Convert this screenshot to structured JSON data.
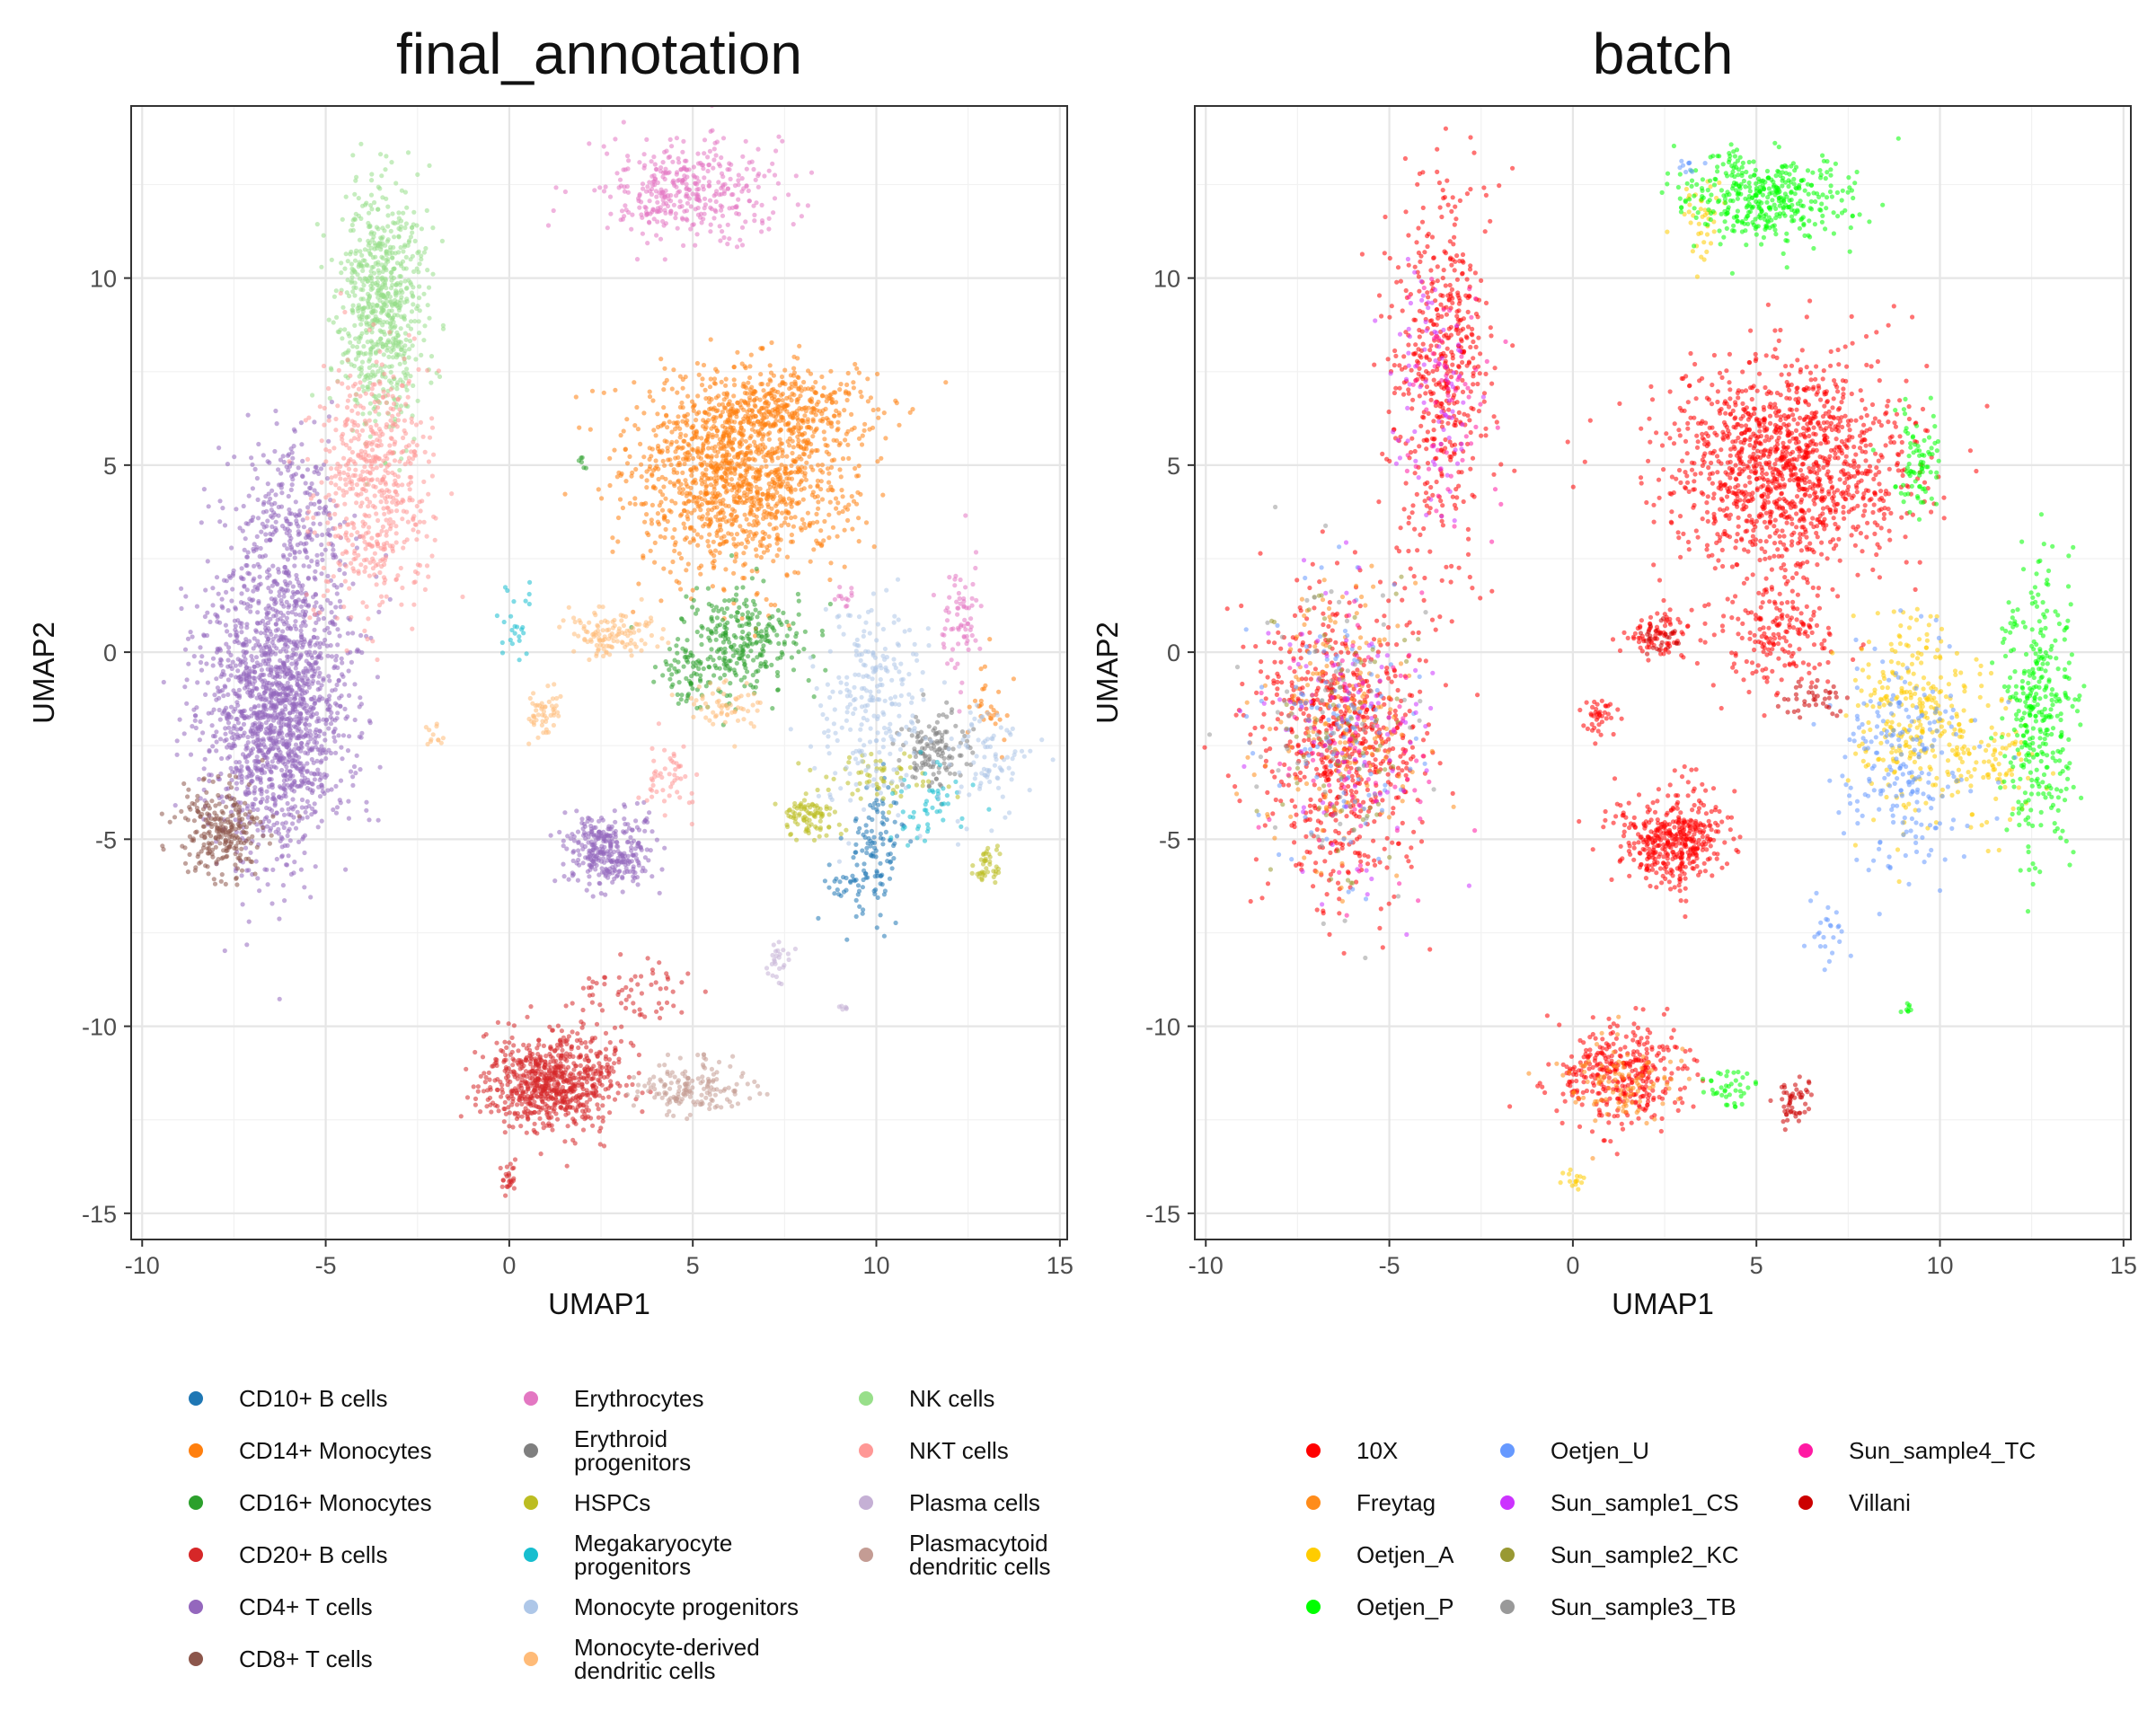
{
  "chart_data": [
    {
      "type": "scatter",
      "title": "final_annotation",
      "xlabel": "UMAP1",
      "ylabel": "UMAP2",
      "xlim": [
        -10.3,
        15.2
      ],
      "ylim": [
        -15.7,
        14.6
      ],
      "x_ticks": [
        -10,
        -5,
        0,
        5,
        10,
        15
      ],
      "y_ticks": [
        -15,
        -10,
        -5,
        0,
        5,
        10
      ],
      "x_tick_labels": [
        "-10",
        "-5",
        "0",
        "5",
        "10",
        "15"
      ],
      "y_tick_labels": [
        "-15",
        "-10",
        "-5",
        "0",
        "5",
        "10"
      ],
      "grid": true,
      "legend_position": "bottom",
      "series": [
        {
          "name": "CD10+ B cells",
          "color": "#1f77b4",
          "clusters": [
            {
              "cx": 10.0,
              "cy": -5.2,
              "sx": 0.4,
              "sy": 0.9,
              "n": 110
            },
            {
              "cx": 9.2,
              "cy": -6.3,
              "sx": 0.3,
              "sy": 0.4,
              "n": 25
            }
          ]
        },
        {
          "name": "CD14+ Monocytes",
          "color": "#ff7f0e",
          "clusters": [
            {
              "cx": 6.3,
              "cy": 4.8,
              "sx": 1.5,
              "sy": 1.3,
              "n": 1300
            },
            {
              "cx": 7.5,
              "cy": 6.5,
              "sx": 1.4,
              "sy": 0.5,
              "n": 300
            },
            {
              "cx": 13.0,
              "cy": -1.2,
              "sx": 0.3,
              "sy": 0.6,
              "n": 30
            }
          ]
        },
        {
          "name": "CD16+ Monocytes",
          "color": "#2ca02c",
          "clusters": [
            {
              "cx": 6.3,
              "cy": 0.3,
              "sx": 0.8,
              "sy": 0.7,
              "n": 280
            },
            {
              "cx": 4.8,
              "cy": -0.6,
              "sx": 0.4,
              "sy": 0.4,
              "n": 60
            },
            {
              "cx": 2.0,
              "cy": 5.1,
              "sx": 0.1,
              "sy": 0.1,
              "n": 6
            }
          ]
        },
        {
          "name": "CD20+ B cells",
          "color": "#d62728",
          "clusters": [
            {
              "cx": 1.2,
              "cy": -11.5,
              "sx": 0.9,
              "sy": 0.65,
              "n": 750
            },
            {
              "cx": 3.3,
              "cy": -9.0,
              "sx": 0.7,
              "sy": 0.4,
              "n": 60
            },
            {
              "cx": 0.0,
              "cy": -14.1,
              "sx": 0.15,
              "sy": 0.2,
              "n": 25
            }
          ]
        },
        {
          "name": "CD4+ T cells",
          "color": "#9467bd",
          "clusters": [
            {
              "cx": -6.3,
              "cy": -1.5,
              "sx": 1.0,
              "sy": 2.0,
              "n": 1700
            },
            {
              "cx": -6.0,
              "cy": 3.5,
              "sx": 0.8,
              "sy": 1.3,
              "n": 250
            },
            {
              "cx": 2.7,
              "cy": -5.3,
              "sx": 0.6,
              "sy": 0.5,
              "n": 320
            }
          ]
        },
        {
          "name": "CD8+ T cells",
          "color": "#8c564b",
          "clusters": [
            {
              "cx": -7.8,
              "cy": -4.8,
              "sx": 0.6,
              "sy": 0.6,
              "n": 250
            }
          ]
        },
        {
          "name": "Erythrocytes",
          "color": "#e377c2",
          "clusters": [
            {
              "cx": 4.8,
              "cy": 12.3,
              "sx": 1.2,
              "sy": 0.7,
              "n": 380
            },
            {
              "cx": 12.3,
              "cy": 1.0,
              "sx": 0.3,
              "sy": 0.8,
              "n": 70
            },
            {
              "cx": 9.0,
              "cy": 1.5,
              "sx": 0.2,
              "sy": 0.2,
              "n": 12
            }
          ]
        },
        {
          "name": "Erythroid progenitors",
          "color": "#7f7f7f",
          "clusters": [
            {
              "cx": 11.6,
              "cy": -2.6,
              "sx": 0.45,
              "sy": 0.5,
              "n": 130
            }
          ]
        },
        {
          "name": "HSPCs",
          "color": "#bcbd22",
          "clusters": [
            {
              "cx": 8.2,
              "cy": -4.4,
              "sx": 0.35,
              "sy": 0.3,
              "n": 90
            },
            {
              "cx": 13.0,
              "cy": -5.7,
              "sx": 0.2,
              "sy": 0.3,
              "n": 40
            },
            {
              "cx": 10.1,
              "cy": -3.4,
              "sx": 0.8,
              "sy": 0.3,
              "n": 60
            }
          ]
        },
        {
          "name": "Megakaryocyte progenitors",
          "color": "#17becf",
          "clusters": [
            {
              "cx": 0.2,
              "cy": 0.8,
              "sx": 0.2,
              "sy": 0.5,
              "n": 25
            },
            {
              "cx": 11.5,
              "cy": -4.0,
              "sx": 0.6,
              "sy": 0.5,
              "n": 50
            }
          ]
        },
        {
          "name": "Monocyte progenitors",
          "color": "#aec7e8",
          "clusters": [
            {
              "cx": 9.8,
              "cy": -1.3,
              "sx": 0.7,
              "sy": 1.3,
              "n": 240
            },
            {
              "cx": 13.0,
              "cy": -3.0,
              "sx": 0.6,
              "sy": 0.8,
              "n": 90
            }
          ]
        },
        {
          "name": "Monocyte-derived dendritic cells",
          "color": "#ffbb78",
          "clusters": [
            {
              "cx": 2.8,
              "cy": 0.5,
              "sx": 0.6,
              "sy": 0.3,
              "n": 120
            },
            {
              "cx": 0.9,
              "cy": -1.7,
              "sx": 0.25,
              "sy": 0.3,
              "n": 50
            },
            {
              "cx": 6.0,
              "cy": -1.5,
              "sx": 0.5,
              "sy": 0.3,
              "n": 60
            },
            {
              "cx": -2.0,
              "cy": -2.2,
              "sx": 0.2,
              "sy": 0.2,
              "n": 12
            }
          ]
        },
        {
          "name": "NK cells",
          "color": "#98df8a",
          "clusters": [
            {
              "cx": -3.5,
              "cy": 9.3,
              "sx": 0.6,
              "sy": 1.6,
              "n": 700
            }
          ]
        },
        {
          "name": "NKT cells",
          "color": "#ff9896",
          "clusters": [
            {
              "cx": -3.6,
              "cy": 4.5,
              "sx": 0.8,
              "sy": 1.8,
              "n": 550
            },
            {
              "cx": 4.3,
              "cy": -3.3,
              "sx": 0.4,
              "sy": 0.5,
              "n": 50
            }
          ]
        },
        {
          "name": "Plasma cells",
          "color": "#c5b0d5",
          "clusters": [
            {
              "cx": 7.3,
              "cy": -8.2,
              "sx": 0.2,
              "sy": 0.4,
              "n": 25
            },
            {
              "cx": 9.0,
              "cy": -9.5,
              "sx": 0.1,
              "sy": 0.1,
              "n": 6
            }
          ]
        },
        {
          "name": "Plasmacytoid dendritic cells",
          "color": "#c49c94",
          "clusters": [
            {
              "cx": 5.0,
              "cy": -11.7,
              "sx": 0.8,
              "sy": 0.4,
              "n": 160
            }
          ]
        }
      ]
    },
    {
      "type": "scatter",
      "title": "batch",
      "xlabel": "UMAP1",
      "ylabel": "UMAP2",
      "xlim": [
        -10.3,
        15.2
      ],
      "ylim": [
        -15.7,
        14.6
      ],
      "x_ticks": [
        -10,
        -5,
        0,
        5,
        10,
        15
      ],
      "y_ticks": [
        -15,
        -10,
        -5,
        0,
        5,
        10
      ],
      "x_tick_labels": [
        "-10",
        "-5",
        "0",
        "5",
        "10",
        "15"
      ],
      "y_tick_labels": [
        "-15",
        "-10",
        "-5",
        "0",
        "5",
        "10"
      ],
      "grid": true,
      "legend_position": "bottom",
      "series": [
        {
          "name": "10X",
          "color": "#ff0000",
          "clusters": [
            {
              "cx": -6.3,
              "cy": -2.3,
              "sx": 1.1,
              "sy": 2.0,
              "n": 700
            },
            {
              "cx": -3.6,
              "cy": 7.5,
              "sx": 0.7,
              "sy": 2.5,
              "n": 500
            },
            {
              "cx": 5.8,
              "cy": 5.0,
              "sx": 1.6,
              "sy": 1.4,
              "n": 1300
            },
            {
              "cx": 2.8,
              "cy": -5.0,
              "sx": 0.7,
              "sy": 0.6,
              "n": 420
            },
            {
              "cx": 1.3,
              "cy": -11.3,
              "sx": 0.9,
              "sy": 0.7,
              "n": 350
            },
            {
              "cx": 2.3,
              "cy": 0.5,
              "sx": 0.5,
              "sy": 0.3,
              "n": 80
            },
            {
              "cx": 0.7,
              "cy": -1.7,
              "sx": 0.25,
              "sy": 0.25,
              "n": 40
            },
            {
              "cx": 5.5,
              "cy": 0.5,
              "sx": 0.8,
              "sy": 0.7,
              "n": 180
            }
          ]
        },
        {
          "name": "Freytag",
          "color": "#ff8c1a",
          "clusters": [
            {
              "cx": -6.2,
              "cy": -2.0,
              "sx": 1.0,
              "sy": 2.0,
              "n": 180
            },
            {
              "cx": 1.2,
              "cy": -11.4,
              "sx": 0.8,
              "sy": 0.6,
              "n": 100
            }
          ]
        },
        {
          "name": "Oetjen_A",
          "color": "#ffcc00",
          "clusters": [
            {
              "cx": 9.3,
              "cy": -1.8,
              "sx": 0.9,
              "sy": 1.4,
              "n": 300
            },
            {
              "cx": 3.5,
              "cy": 11.5,
              "sx": 0.3,
              "sy": 0.6,
              "n": 40
            },
            {
              "cx": 11.5,
              "cy": -3.0,
              "sx": 0.7,
              "sy": 0.8,
              "n": 80
            },
            {
              "cx": 0.1,
              "cy": -14.1,
              "sx": 0.15,
              "sy": 0.15,
              "n": 15
            }
          ]
        },
        {
          "name": "Oetjen_P",
          "color": "#00ff00",
          "clusters": [
            {
              "cx": 5.2,
              "cy": 12.2,
              "sx": 1.1,
              "sy": 0.6,
              "n": 400
            },
            {
              "cx": 12.7,
              "cy": -1.5,
              "sx": 0.5,
              "sy": 2.0,
              "n": 350
            },
            {
              "cx": 9.3,
              "cy": 5.0,
              "sx": 0.35,
              "sy": 0.7,
              "n": 80
            },
            {
              "cx": 4.3,
              "cy": -11.6,
              "sx": 0.3,
              "sy": 0.3,
              "n": 40
            },
            {
              "cx": 9.1,
              "cy": -9.5,
              "sx": 0.1,
              "sy": 0.1,
              "n": 8
            }
          ]
        },
        {
          "name": "Oetjen_U",
          "color": "#6699ff",
          "clusters": [
            {
              "cx": 9.0,
              "cy": -3.0,
              "sx": 1.0,
              "sy": 1.6,
              "n": 220
            },
            {
              "cx": -6.4,
              "cy": -2.0,
              "sx": 1.0,
              "sy": 2.0,
              "n": 120
            },
            {
              "cx": 7.0,
              "cy": -7.5,
              "sx": 0.3,
              "sy": 0.6,
              "n": 25
            },
            {
              "cx": 3.2,
              "cy": 13.0,
              "sx": 0.2,
              "sy": 0.1,
              "n": 10
            }
          ]
        },
        {
          "name": "Sun_sample1_CS",
          "color": "#cc33ff",
          "clusters": [
            {
              "cx": -6.1,
              "cy": -1.8,
              "sx": 1.0,
              "sy": 2.0,
              "n": 100
            },
            {
              "cx": -3.8,
              "cy": 7.0,
              "sx": 0.6,
              "sy": 2.0,
              "n": 80
            }
          ]
        },
        {
          "name": "Sun_sample2_KC",
          "color": "#999933",
          "clusters": [
            {
              "cx": -6.3,
              "cy": -2.2,
              "sx": 1.0,
              "sy": 2.0,
              "n": 80
            }
          ]
        },
        {
          "name": "Sun_sample3_TB",
          "color": "#999999",
          "clusters": [
            {
              "cx": -6.5,
              "cy": -1.8,
              "sx": 1.0,
              "sy": 2.0,
              "n": 80
            }
          ]
        },
        {
          "name": "Sun_sample4_TC",
          "color": "#ff1aa3",
          "clusters": [
            {
              "cx": -6.0,
              "cy": -2.5,
              "sx": 1.0,
              "sy": 2.0,
              "n": 80
            },
            {
              "cx": -3.4,
              "cy": 6.5,
              "sx": 0.6,
              "sy": 2.0,
              "n": 60
            }
          ]
        },
        {
          "name": "Villani",
          "color": "#cc0000",
          "clusters": [
            {
              "cx": 6.0,
              "cy": -12.0,
              "sx": 0.2,
              "sy": 0.3,
              "n": 50
            },
            {
              "cx": 6.5,
              "cy": -1.2,
              "sx": 0.4,
              "sy": 0.3,
              "n": 40
            },
            {
              "cx": 2.4,
              "cy": 0.4,
              "sx": 0.3,
              "sy": 0.2,
              "n": 30
            }
          ]
        }
      ]
    }
  ]
}
